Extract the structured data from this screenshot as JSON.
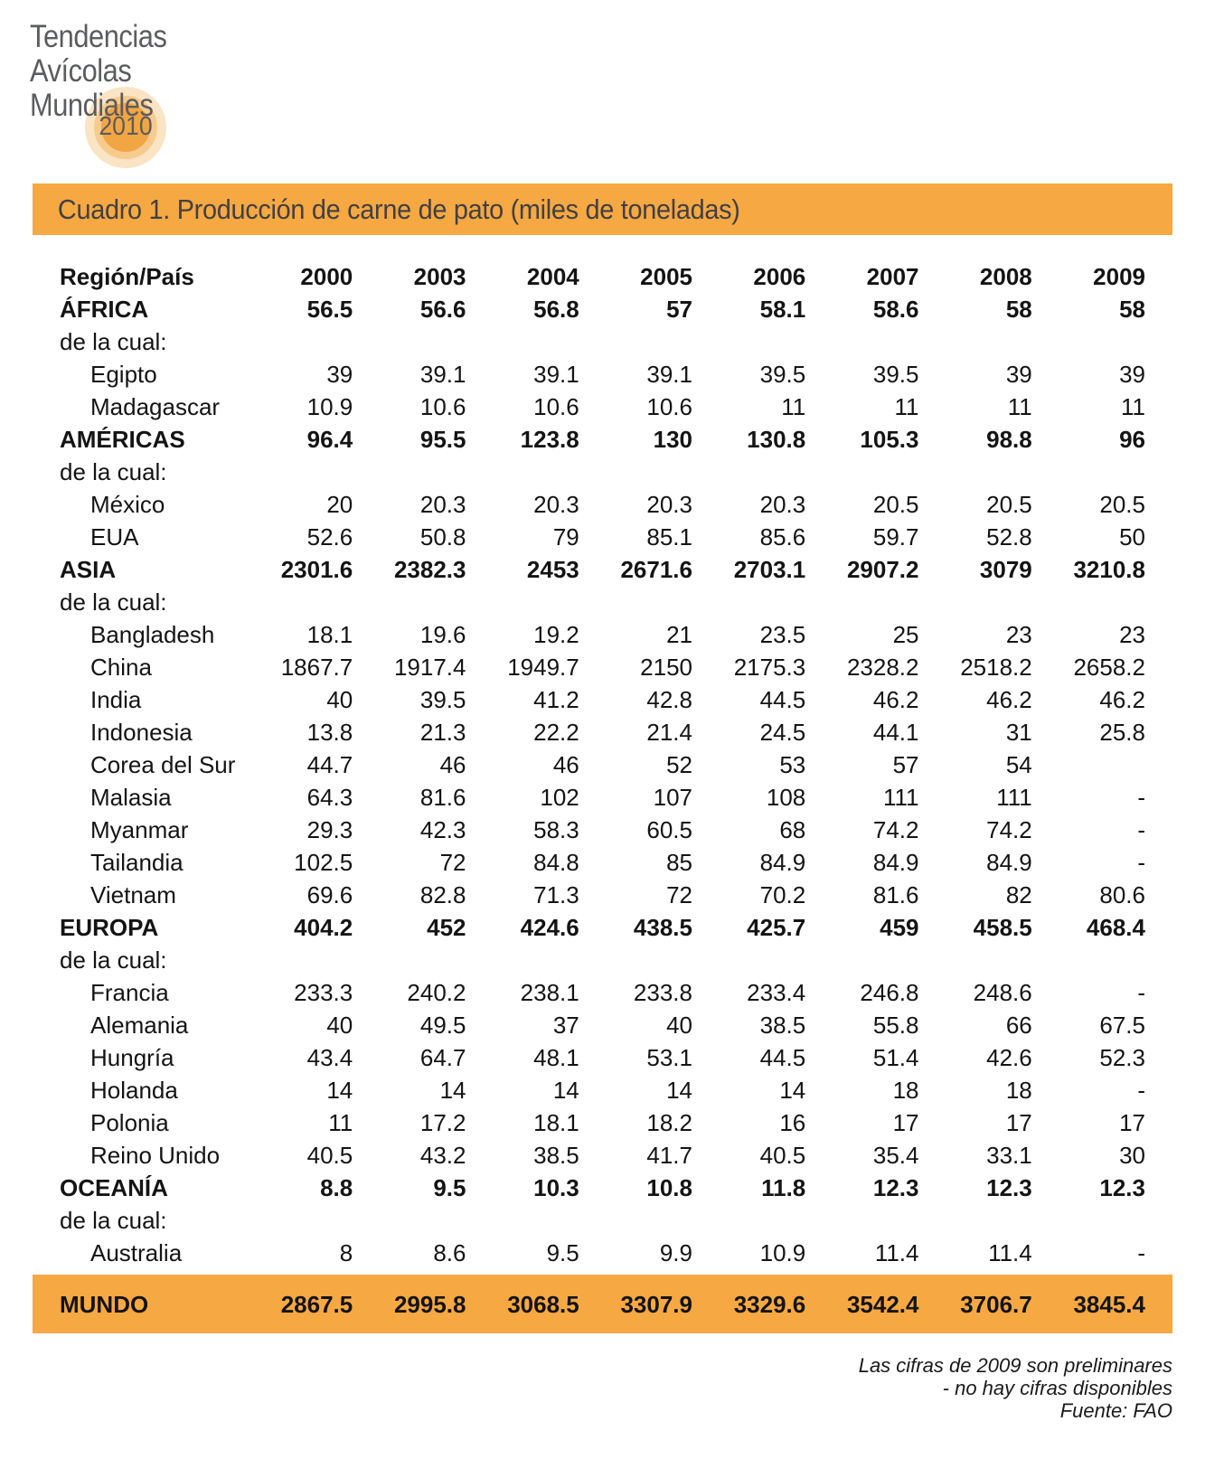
{
  "logo": {
    "lines": [
      "Tendencias",
      "Avícolas",
      "Mundiales"
    ],
    "year": "2010"
  },
  "table": {
    "title": "Cuadro 1. Producción de carne de pato (miles de toneladas)",
    "columns": [
      "Región/País",
      "2000",
      "2003",
      "2004",
      "2005",
      "2006",
      "2007",
      "2008",
      "2009"
    ],
    "rows": [
      {
        "label": "ÁFRICA",
        "style": "region",
        "values": [
          "56.5",
          "56.6",
          "56.8",
          "57",
          "58.1",
          "58.6",
          "58",
          "58"
        ]
      },
      {
        "label": "de la cual:",
        "style": "note",
        "values": []
      },
      {
        "label": "Egipto",
        "style": "country",
        "values": [
          "39",
          "39.1",
          "39.1",
          "39.1",
          "39.5",
          "39.5",
          "39",
          "39"
        ]
      },
      {
        "label": "Madagascar",
        "style": "country",
        "values": [
          "10.9",
          "10.6",
          "10.6",
          "10.6",
          "11",
          "11",
          "11",
          "11"
        ]
      },
      {
        "label": "AMÉRICAS",
        "style": "region",
        "values": [
          "96.4",
          "95.5",
          "123.8",
          "130",
          "130.8",
          "105.3",
          "98.8",
          "96"
        ]
      },
      {
        "label": "de la cual:",
        "style": "note",
        "values": []
      },
      {
        "label": "México",
        "style": "country",
        "values": [
          "20",
          "20.3",
          "20.3",
          "20.3",
          "20.3",
          "20.5",
          "20.5",
          "20.5"
        ]
      },
      {
        "label": "EUA",
        "style": "country",
        "values": [
          "52.6",
          "50.8",
          "79",
          "85.1",
          "85.6",
          "59.7",
          "52.8",
          "50"
        ]
      },
      {
        "label": "ASIA",
        "style": "region",
        "values": [
          "2301.6",
          "2382.3",
          "2453",
          "2671.6",
          "2703.1",
          "2907.2",
          "3079",
          "3210.8"
        ]
      },
      {
        "label": "de la cual:",
        "style": "note",
        "values": []
      },
      {
        "label": "Bangladesh",
        "style": "country",
        "values": [
          "18.1",
          "19.6",
          "19.2",
          "21",
          "23.5",
          "25",
          "23",
          "23"
        ]
      },
      {
        "label": "China",
        "style": "country",
        "values": [
          "1867.7",
          "1917.4",
          "1949.7",
          "2150",
          "2175.3",
          "2328.2",
          "2518.2",
          "2658.2"
        ]
      },
      {
        "label": "India",
        "style": "country",
        "values": [
          "40",
          "39.5",
          "41.2",
          "42.8",
          "44.5",
          "46.2",
          "46.2",
          "46.2"
        ]
      },
      {
        "label": "Indonesia",
        "style": "country",
        "values": [
          "13.8",
          "21.3",
          "22.2",
          "21.4",
          "24.5",
          "44.1",
          "31",
          "25.8"
        ]
      },
      {
        "label": "Corea del Sur",
        "style": "country",
        "values": [
          "44.7",
          "46",
          "46",
          "52",
          "53",
          "57",
          "54",
          ""
        ]
      },
      {
        "label": "Malasia",
        "style": "country",
        "values": [
          "64.3",
          "81.6",
          "102",
          "107",
          "108",
          "111",
          "111",
          "-"
        ]
      },
      {
        "label": "Myanmar",
        "style": "country",
        "values": [
          "29.3",
          "42.3",
          "58.3",
          "60.5",
          "68",
          "74.2",
          "74.2",
          "-"
        ]
      },
      {
        "label": "Tailandia",
        "style": "country",
        "values": [
          "102.5",
          "72",
          "84.8",
          "85",
          "84.9",
          "84.9",
          "84.9",
          "-"
        ]
      },
      {
        "label": "Vietnam",
        "style": "country",
        "values": [
          "69.6",
          "82.8",
          "71.3",
          "72",
          "70.2",
          "81.6",
          "82",
          "80.6"
        ]
      },
      {
        "label": "EUROPA",
        "style": "region",
        "values": [
          "404.2",
          "452",
          "424.6",
          "438.5",
          "425.7",
          "459",
          "458.5",
          "468.4"
        ]
      },
      {
        "label": "de la cual:",
        "style": "note",
        "values": []
      },
      {
        "label": "Francia",
        "style": "country",
        "values": [
          "233.3",
          "240.2",
          "238.1",
          "233.8",
          "233.4",
          "246.8",
          "248.6",
          "-"
        ]
      },
      {
        "label": "Alemania",
        "style": "country",
        "values": [
          "40",
          "49.5",
          "37",
          "40",
          "38.5",
          "55.8",
          "66",
          "67.5"
        ]
      },
      {
        "label": "Hungría",
        "style": "country",
        "values": [
          "43.4",
          "64.7",
          "48.1",
          "53.1",
          "44.5",
          "51.4",
          "42.6",
          "52.3"
        ]
      },
      {
        "label": "Holanda",
        "style": "country",
        "values": [
          "14",
          "14",
          "14",
          "14",
          "14",
          "18",
          "18",
          "-"
        ]
      },
      {
        "label": "Polonia",
        "style": "country",
        "values": [
          "11",
          "17.2",
          "18.1",
          "18.2",
          "16",
          "17",
          "17",
          "17"
        ]
      },
      {
        "label": "Reino Unido",
        "style": "country",
        "values": [
          "40.5",
          "43.2",
          "38.5",
          "41.7",
          "40.5",
          "35.4",
          "33.1",
          "30"
        ]
      },
      {
        "label": "OCEANÍA",
        "style": "region",
        "values": [
          "8.8",
          "9.5",
          "10.3",
          "10.8",
          "11.8",
          "12.3",
          "12.3",
          "12.3"
        ]
      },
      {
        "label": "de la cual:",
        "style": "note",
        "values": []
      },
      {
        "label": "Australia",
        "style": "country",
        "values": [
          "8",
          "8.6",
          "9.5",
          "9.9",
          "10.9",
          "11.4",
          "11.4",
          "-"
        ]
      }
    ]
  },
  "world": {
    "label": "MUNDO",
    "values": [
      "2867.5",
      "2995.8",
      "3068.5",
      "3307.9",
      "3329.6",
      "3542.4",
      "3706.7",
      "3845.4"
    ]
  },
  "footnotes": [
    "Las cifras de 2009 son preliminares",
    "- no hay cifras disponibles",
    "Fuente: FAO"
  ],
  "colors": {
    "accent": "#F6A843",
    "circle_inner": "#F2A643",
    "circle_mid": "#F7CA8E",
    "circle_outer": "#FAE4C3",
    "logo_text": "#5B5C5E",
    "title_text": "#414042"
  }
}
